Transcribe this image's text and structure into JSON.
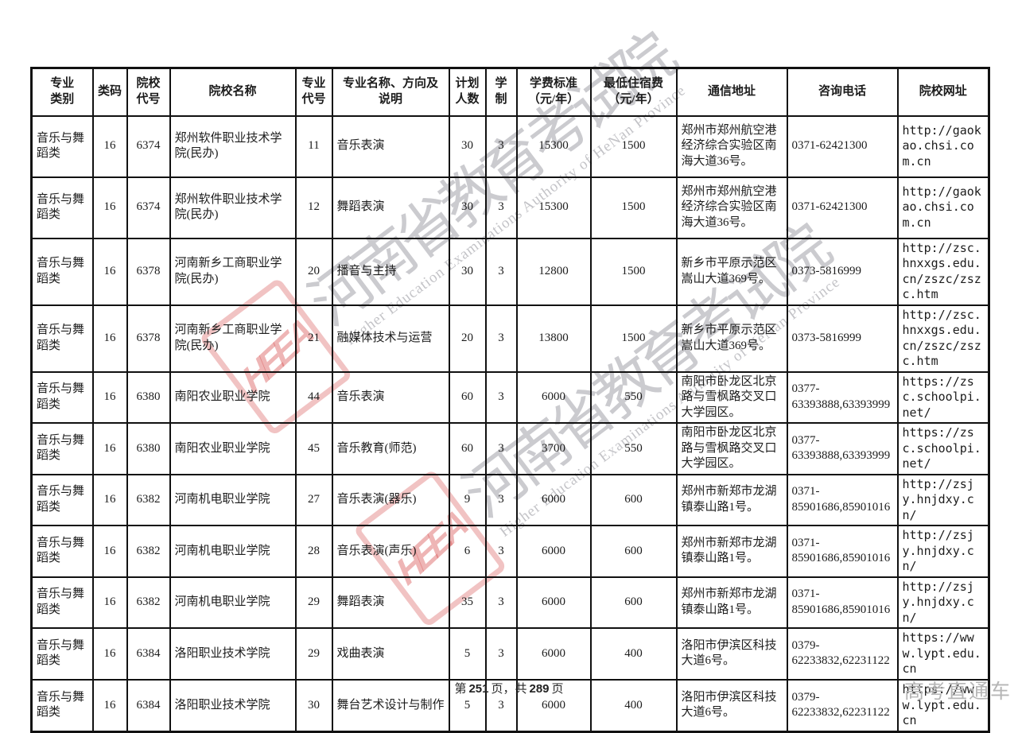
{
  "watermark": {
    "logo_text": "HEEA",
    "cn_text": "河南省教育考试院",
    "en_text": "Higher Education Examinations Authority of HeNan Province"
  },
  "table": {
    "headers": [
      "专业\n类别",
      "类码",
      "院校\n代号",
      "院校名称",
      "专业\n代号",
      "专业名称、方向及\n说明",
      "计划\n人数",
      "学制",
      "学费标准\n（元/年）",
      "最低住宿费\n（元/年）",
      "通信地址",
      "咨询电话",
      "院校网址"
    ],
    "rows": [
      [
        "音乐与舞蹈类",
        "16",
        "6374",
        "郑州软件职业技术学院(民办)",
        "11",
        "音乐表演",
        "30",
        "3",
        "15300",
        "1500",
        "郑州市郑州航空港经济综合实验区南海大道36号。",
        "0371-62421300",
        "http://gaokao.chsi.com.cn"
      ],
      [
        "音乐与舞蹈类",
        "16",
        "6374",
        "郑州软件职业技术学院(民办)",
        "12",
        "舞蹈表演",
        "30",
        "3",
        "15300",
        "1500",
        "郑州市郑州航空港经济综合实验区南海大道36号。",
        "0371-62421300",
        "http://gaokao.chsi.com.cn"
      ],
      [
        "音乐与舞蹈类",
        "16",
        "6378",
        "河南新乡工商职业学院(民办)",
        "20",
        "播音与主持",
        "30",
        "3",
        "12800",
        "1500",
        "新乡市平原示范区嵩山大道369号。",
        "0373-5816999",
        "http://zsc.hnxxgs.edu.cn/zszc/zszc.htm"
      ],
      [
        "音乐与舞蹈类",
        "16",
        "6378",
        "河南新乡工商职业学院(民办)",
        "21",
        "融媒体技术与运营",
        "20",
        "3",
        "13800",
        "1500",
        "新乡市平原示范区嵩山大道369号。",
        "0373-5816999",
        "http://zsc.hnxxgs.edu.cn/zszc/zszc.htm"
      ],
      [
        "音乐与舞蹈类",
        "16",
        "6380",
        "南阳农业职业学院",
        "44",
        "音乐表演",
        "60",
        "3",
        "6000",
        "550",
        "南阳市卧龙区北京路与雪枫路交叉口大学园区。",
        "0377-\n63393888,63393999",
        "https://zsc.schoolpi.net/"
      ],
      [
        "音乐与舞蹈类",
        "16",
        "6380",
        "南阳农业职业学院",
        "45",
        "音乐教育(师范)",
        "60",
        "3",
        "3700",
        "550",
        "南阳市卧龙区北京路与雪枫路交叉口大学园区。",
        "0377-\n63393888,63393999",
        "https://zsc.schoolpi.net/"
      ],
      [
        "音乐与舞蹈类",
        "16",
        "6382",
        "河南机电职业学院",
        "27",
        "音乐表演(器乐)",
        "9",
        "3",
        "6000",
        "600",
        "郑州市新郑市龙湖镇泰山路1号。",
        "0371-\n85901686,85901016",
        "http://zsjy.hnjdxy.cn/"
      ],
      [
        "音乐与舞蹈类",
        "16",
        "6382",
        "河南机电职业学院",
        "28",
        "音乐表演(声乐)",
        "6",
        "3",
        "6000",
        "600",
        "郑州市新郑市龙湖镇泰山路1号。",
        "0371-\n85901686,85901016",
        "http://zsjy.hnjdxy.cn/"
      ],
      [
        "音乐与舞蹈类",
        "16",
        "6382",
        "河南机电职业学院",
        "29",
        "舞蹈表演",
        "35",
        "3",
        "6000",
        "600",
        "郑州市新郑市龙湖镇泰山路1号。",
        "0371-\n85901686,85901016",
        "http://zsjy.hnjdxy.cn/"
      ],
      [
        "音乐与舞蹈类",
        "16",
        "6384",
        "洛阳职业技术学院",
        "29",
        "戏曲表演",
        "5",
        "3",
        "6000",
        "400",
        "洛阳市伊滨区科技大道6号。",
        "0379-\n62233832,62231122",
        "https://www.lypt.edu.cn"
      ],
      [
        "音乐与舞蹈类",
        "16",
        "6384",
        "洛阳职业技术学院",
        "30",
        "舞台艺术设计与制作",
        "5",
        "3",
        "6000",
        "400",
        "洛阳市伊滨区科技大道6号。",
        "0379-\n62233832,62231122",
        "https://www.lypt.edu.cn"
      ]
    ]
  },
  "footer": {
    "page_prefix": "第",
    "page_number": "251",
    "page_mid": "页，共",
    "page_total": "289",
    "page_suffix": "页",
    "brand": "高考直通车"
  },
  "colors": {
    "watermark_red": "#d64e4e",
    "watermark_gray": "#c6c6cc",
    "border": "#111111",
    "brand_gray": "#b6b6b6"
  }
}
